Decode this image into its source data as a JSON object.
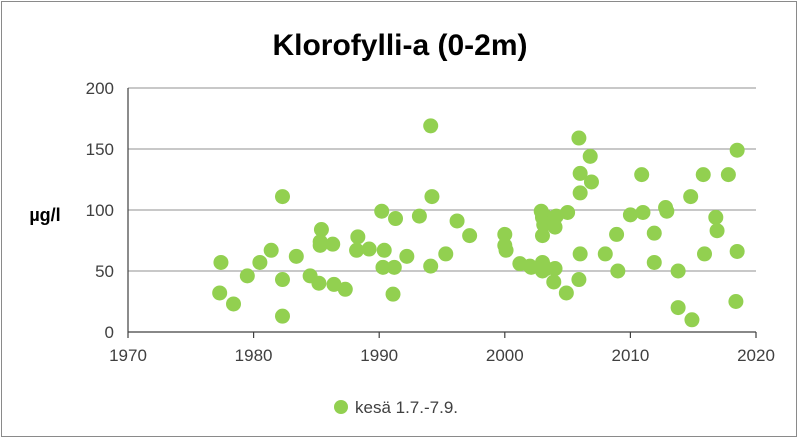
{
  "chart_data": {
    "type": "scatter",
    "title": "Klorofylli-a (0-2m)",
    "xlabel": "",
    "ylabel": "µg/l",
    "xlim": [
      1970,
      2020
    ],
    "ylim": [
      0,
      200
    ],
    "x_ticks": [
      "1970",
      "1980",
      "1990",
      "2000",
      "2010",
      "2020"
    ],
    "y_ticks": [
      "0",
      "50",
      "100",
      "150",
      "200"
    ],
    "grid": "horizontal",
    "legend_position": "bottom",
    "colors": {
      "marker": "#92d050",
      "grid": "#a6a6a6",
      "axis": "#404040",
      "text": "#000000"
    },
    "series": [
      {
        "name": "kesä 1.7.-7.9.",
        "points": [
          [
            1977.3,
            32
          ],
          [
            1977.4,
            57
          ],
          [
            1978.4,
            23
          ],
          [
            1979.5,
            46
          ],
          [
            1980.5,
            57
          ],
          [
            1981.4,
            67
          ],
          [
            1982.3,
            111
          ],
          [
            1982.3,
            43
          ],
          [
            1982.3,
            13
          ],
          [
            1983.4,
            62
          ],
          [
            1984.5,
            46
          ],
          [
            1985.2,
            40
          ],
          [
            1985.3,
            71
          ],
          [
            1985.4,
            84
          ],
          [
            1985.3,
            74
          ],
          [
            1986.3,
            72
          ],
          [
            1986.4,
            39
          ],
          [
            1987.3,
            35
          ],
          [
            1988.2,
            67
          ],
          [
            1988.3,
            78
          ],
          [
            1989.2,
            68
          ],
          [
            1990.2,
            99
          ],
          [
            1990.3,
            53
          ],
          [
            1990.4,
            67
          ],
          [
            1991.1,
            31
          ],
          [
            1991.2,
            53
          ],
          [
            1991.3,
            93
          ],
          [
            1992.2,
            62
          ],
          [
            1993.2,
            95
          ],
          [
            1994.1,
            169
          ],
          [
            1994.2,
            111
          ],
          [
            1994.1,
            54
          ],
          [
            1995.3,
            64
          ],
          [
            1996.2,
            91
          ],
          [
            1997.2,
            79
          ],
          [
            2000.0,
            80
          ],
          [
            2000.0,
            71
          ],
          [
            2000.1,
            67
          ],
          [
            2001.2,
            56
          ],
          [
            2002.0,
            54
          ],
          [
            2002.1,
            53
          ],
          [
            2002.9,
            99
          ],
          [
            2003.0,
            94
          ],
          [
            2003.0,
            79
          ],
          [
            2003.0,
            57
          ],
          [
            2003.0,
            50
          ],
          [
            2003.1,
            88
          ],
          [
            2003.2,
            95
          ],
          [
            2003.3,
            52
          ],
          [
            2003.9,
            91
          ],
          [
            2004.0,
            86
          ],
          [
            2004.0,
            52
          ],
          [
            2003.9,
            41
          ],
          [
            2004.1,
            95
          ],
          [
            2004.9,
            32
          ],
          [
            2005.0,
            98
          ],
          [
            2005.9,
            159
          ],
          [
            2006.0,
            130
          ],
          [
            2006.0,
            114
          ],
          [
            2006.0,
            64
          ],
          [
            2005.9,
            43
          ],
          [
            2006.8,
            144
          ],
          [
            2006.9,
            123
          ],
          [
            2008.0,
            64
          ],
          [
            2008.9,
            80
          ],
          [
            2009.0,
            50
          ],
          [
            2010.0,
            96
          ],
          [
            2010.9,
            129
          ],
          [
            2011.0,
            98
          ],
          [
            2011.9,
            81
          ],
          [
            2011.9,
            57
          ],
          [
            2012.8,
            102
          ],
          [
            2012.9,
            99
          ],
          [
            2013.8,
            50
          ],
          [
            2013.8,
            20
          ],
          [
            2014.8,
            111
          ],
          [
            2014.9,
            10
          ],
          [
            2015.8,
            129
          ],
          [
            2015.9,
            64
          ],
          [
            2016.8,
            94
          ],
          [
            2016.9,
            83
          ],
          [
            2017.8,
            129
          ],
          [
            2018.5,
            149
          ],
          [
            2018.5,
            66
          ],
          [
            2018.4,
            25
          ]
        ]
      }
    ]
  }
}
